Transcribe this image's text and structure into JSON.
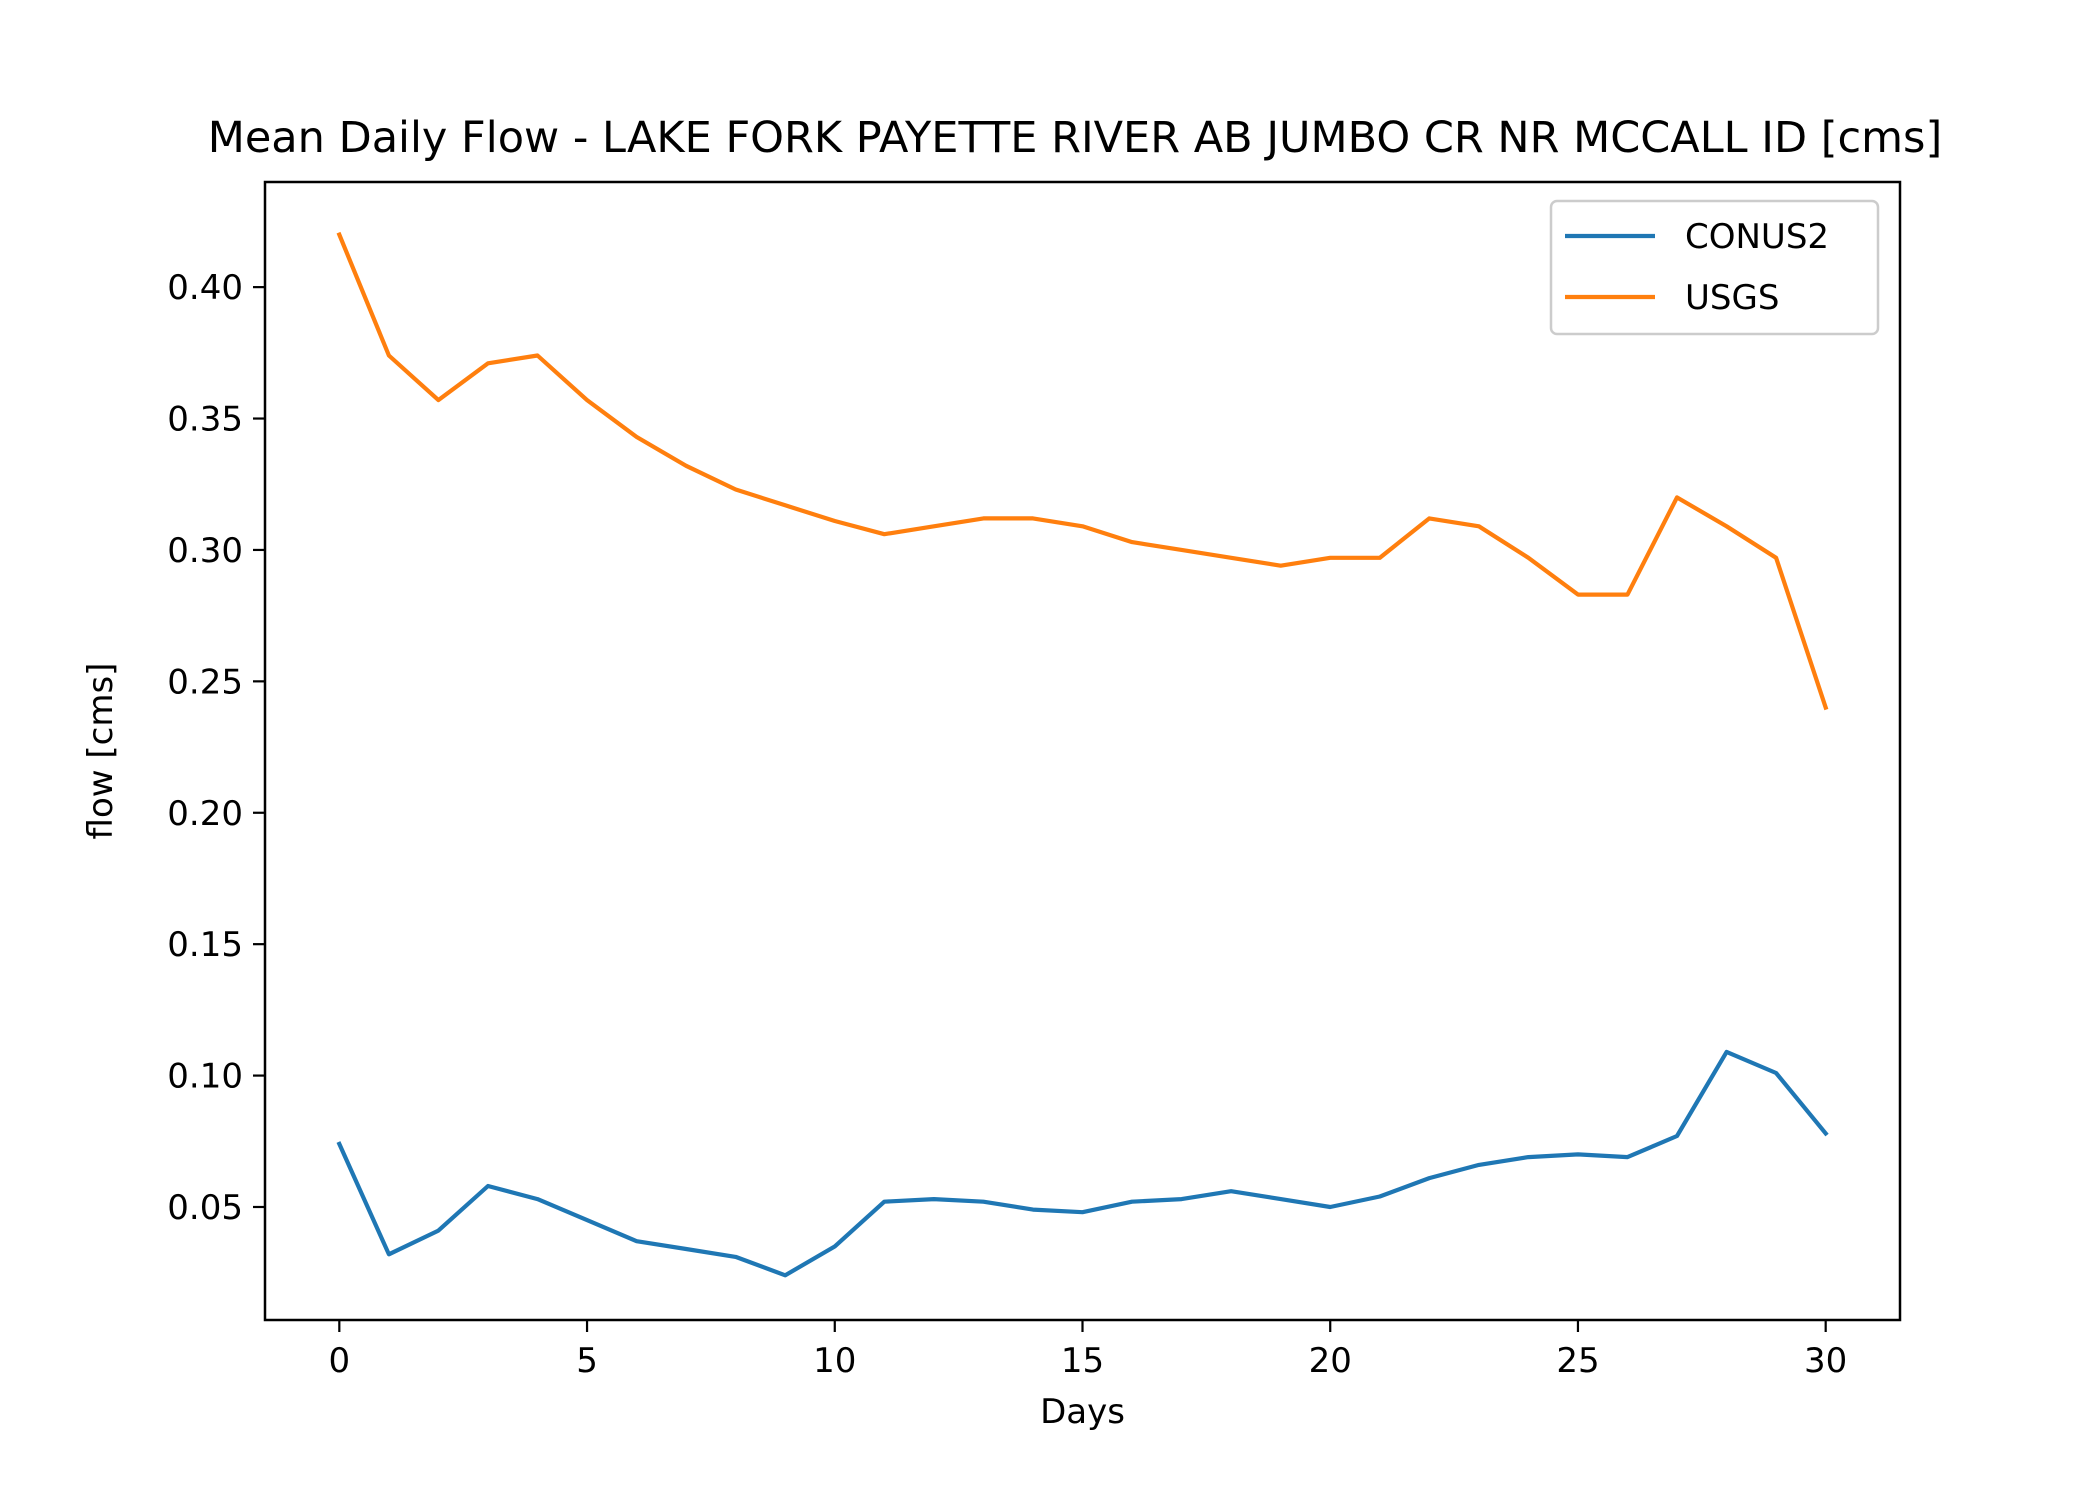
{
  "chart_data": {
    "type": "line",
    "title": "Mean Daily Flow - LAKE FORK PAYETTE RIVER AB JUMBO CR NR MCCALL ID [cms]",
    "xlabel": "Days",
    "ylabel": "flow [cms]",
    "xlim": [
      -1.5,
      31.5
    ],
    "ylim": [
      0.007,
      0.44
    ],
    "xticks": [
      0,
      5,
      10,
      15,
      20,
      25,
      30
    ],
    "yticks": [
      0.05,
      0.1,
      0.15,
      0.2,
      0.25,
      0.3,
      0.35,
      0.4
    ],
    "ytick_labels": [
      "0.05",
      "0.10",
      "0.15",
      "0.20",
      "0.25",
      "0.30",
      "0.35",
      "0.40"
    ],
    "grid": false,
    "legend_position": "top-right",
    "x": [
      0,
      1,
      2,
      3,
      4,
      5,
      6,
      7,
      8,
      9,
      10,
      11,
      12,
      13,
      14,
      15,
      16,
      17,
      18,
      19,
      20,
      21,
      22,
      23,
      24,
      25,
      26,
      27,
      28,
      29,
      30
    ],
    "series": [
      {
        "name": "CONUS2",
        "color": "#1f77b4",
        "values": [
          0.074,
          0.032,
          0.041,
          0.058,
          0.053,
          0.045,
          0.037,
          0.034,
          0.031,
          0.024,
          0.035,
          0.052,
          0.053,
          0.052,
          0.049,
          0.048,
          0.052,
          0.053,
          0.056,
          0.053,
          0.05,
          0.054,
          0.061,
          0.066,
          0.069,
          0.07,
          0.069,
          0.077,
          0.109,
          0.101,
          0.078
        ]
      },
      {
        "name": "USGS",
        "color": "#ff7f0e",
        "values": [
          0.42,
          0.374,
          0.357,
          0.371,
          0.374,
          0.357,
          0.343,
          0.332,
          0.323,
          0.317,
          0.311,
          0.306,
          0.309,
          0.312,
          0.312,
          0.309,
          0.303,
          0.3,
          0.297,
          0.294,
          0.297,
          0.297,
          0.312,
          0.309,
          0.297,
          0.283,
          0.283,
          0.32,
          0.309,
          0.297,
          0.24
        ]
      }
    ]
  }
}
